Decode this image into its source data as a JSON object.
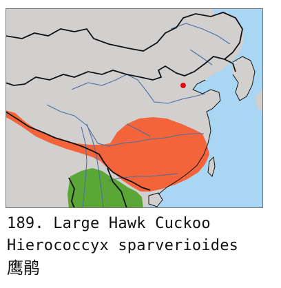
{
  "species": {
    "number_line": "189. Large Hawk Cuckoo",
    "scientific_name": "Hierococcyx sparverioides",
    "chinese_name": "鹰鹃"
  },
  "colors": {
    "ocean": "#a9d6f2",
    "land": "#d2cfcf",
    "breeding_range": "#f4643a",
    "resident_range": "#5aa637",
    "capital_marker": "#dd1111",
    "border": "#111111",
    "river": "#4b6e9e"
  }
}
